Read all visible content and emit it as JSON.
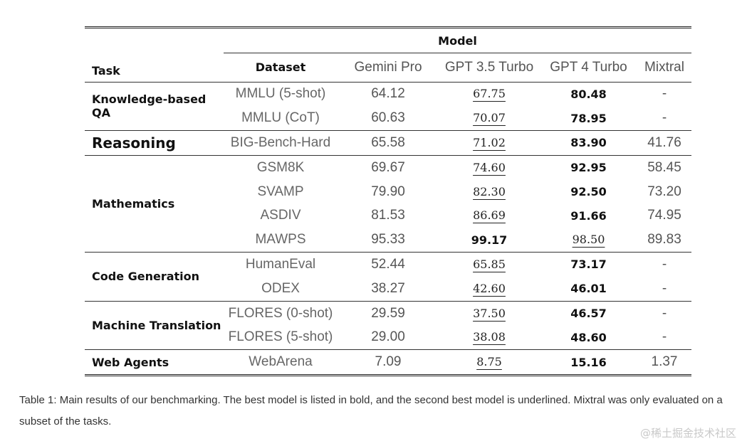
{
  "table": {
    "header": {
      "model_group": "Model",
      "task": "Task",
      "dataset": "Dataset",
      "models": [
        "Gemini Pro",
        "GPT 3.5 Turbo",
        "GPT 4 Turbo",
        "Mixtral"
      ]
    },
    "groups": [
      {
        "task": "Knowledge-based QA",
        "rows": [
          {
            "dataset": "MMLU (5-shot)",
            "values": [
              "64.12",
              "67.75",
              "80.48",
              "-"
            ]
          },
          {
            "dataset": "MMLU (CoT)",
            "values": [
              "60.63",
              "70.07",
              "78.95",
              "-"
            ]
          }
        ]
      },
      {
        "task": "Reasoning",
        "rows": [
          {
            "dataset": "BIG-Bench-Hard",
            "values": [
              "65.58",
              "71.02",
              "83.90",
              "41.76"
            ]
          }
        ]
      },
      {
        "task": "Mathematics",
        "rows": [
          {
            "dataset": "GSM8K",
            "values": [
              "69.67",
              "74.60",
              "92.95",
              "58.45"
            ]
          },
          {
            "dataset": "SVAMP",
            "values": [
              "79.90",
              "82.30",
              "92.50",
              "73.20"
            ]
          },
          {
            "dataset": "ASDIV",
            "values": [
              "81.53",
              "86.69",
              "91.66",
              "74.95"
            ]
          },
          {
            "dataset": "MAWPS",
            "values": [
              "95.33",
              "99.17",
              "98.50",
              "89.83"
            ]
          }
        ]
      },
      {
        "task": "Code Generation",
        "rows": [
          {
            "dataset": "HumanEval",
            "values": [
              "52.44",
              "65.85",
              "73.17",
              "-"
            ]
          },
          {
            "dataset": "ODEX",
            "values": [
              "38.27",
              "42.60",
              "46.01",
              "-"
            ]
          }
        ]
      },
      {
        "task": "Machine Translation",
        "rows": [
          {
            "dataset": "FLORES (0-shot)",
            "values": [
              "29.59",
              "37.50",
              "46.57",
              "-"
            ]
          },
          {
            "dataset": "FLORES (5-shot)",
            "values": [
              "29.00",
              "38.08",
              "48.60",
              "-"
            ]
          }
        ]
      },
      {
        "task": "Web Agents",
        "rows": [
          {
            "dataset": "WebArena",
            "values": [
              "7.09",
              "8.75",
              "15.16",
              "1.37"
            ]
          }
        ]
      }
    ]
  },
  "caption": "Table 1: Main results of our benchmarking. The best model is listed in bold, and the second best model is underlined. Mixtral was only evaluated on a subset of the tasks.",
  "watermark": "@稀土掘金技术社区"
}
